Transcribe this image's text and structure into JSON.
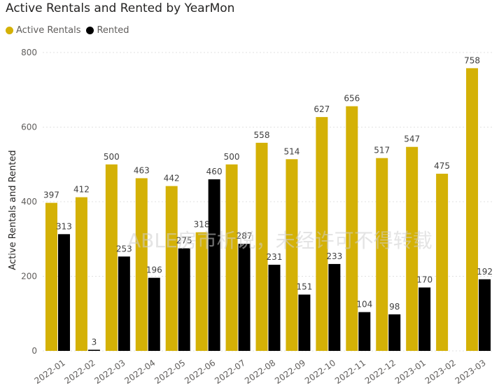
{
  "chart_data": {
    "type": "bar",
    "title": "Active Rentals and Rented by YearMon",
    "xlabel": "",
    "ylabel": "Active Rentals and Rented",
    "ylim": [
      0,
      800
    ],
    "yticks": [
      "0",
      "200",
      "400",
      "600",
      "800"
    ],
    "categories": [
      "2022-01",
      "2022-02",
      "2022-03",
      "2022-04",
      "2022-05",
      "2022-06",
      "2022-07",
      "2022-08",
      "2022-09",
      "2022-10",
      "2022-11",
      "2022-12",
      "2023-01",
      "2023-02",
      "2023-03"
    ],
    "series": [
      {
        "name": "Active Rentals",
        "color": "#D4B106",
        "values": [
          397,
          412,
          500,
          463,
          442,
          318,
          500,
          558,
          514,
          627,
          656,
          517,
          547,
          475,
          758
        ]
      },
      {
        "name": "Rented",
        "color": "#000000",
        "values": [
          313,
          3,
          253,
          196,
          275,
          460,
          287,
          231,
          151,
          233,
          104,
          98,
          170,
          null,
          192
        ]
      }
    ],
    "data_labels": {
      "Active Rentals": [
        "397",
        "412",
        "500",
        "463",
        "442",
        "318",
        "500",
        "558",
        "514",
        "627",
        "656",
        "517",
        "547",
        "475",
        "758"
      ],
      "Rented": [
        "313",
        "3",
        "253",
        "196",
        "275",
        "460",
        "287",
        "231",
        "151",
        "233",
        "104",
        "98",
        "170",
        "",
        "192"
      ]
    },
    "watermark": "ABLE房市析说，未经许可不得转载",
    "legend_position": "top-left"
  }
}
